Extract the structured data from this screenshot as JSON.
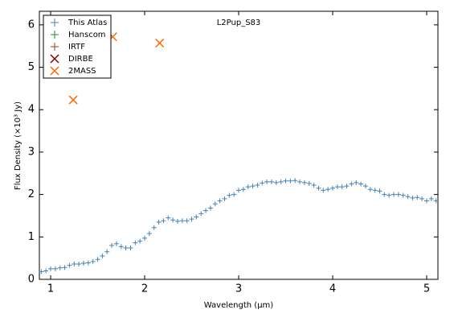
{
  "chart_data": {
    "type": "scatter",
    "title": "L2Pup_S83",
    "xlabel": "Wavelength (μm)",
    "ylabel": "Flux Density (×10³ Jy)",
    "xlim": [
      0.88,
      5.12
    ],
    "ylim": [
      0,
      6.32
    ],
    "xticks": [
      1,
      2,
      3,
      4,
      5
    ],
    "yticks": [
      0,
      1,
      2,
      3,
      4,
      5,
      6
    ],
    "legend": "upper left",
    "series": [
      {
        "name": "This Atlas",
        "color": "#4682b4",
        "marker": "+",
        "x": [
          0.9,
          0.95,
          1.0,
          1.05,
          1.1,
          1.15,
          1.2,
          1.25,
          1.3,
          1.35,
          1.4,
          1.45,
          1.5,
          1.55,
          1.6,
          1.65,
          1.7,
          1.75,
          1.8,
          1.85,
          1.9,
          1.95,
          2.0,
          2.05,
          2.1,
          2.15,
          2.2,
          2.25,
          2.3,
          2.35,
          2.4,
          2.45,
          2.5,
          2.55,
          2.6,
          2.65,
          2.7,
          2.75,
          2.8,
          2.85,
          2.9,
          2.95,
          3.0,
          3.05,
          3.1,
          3.15,
          3.2,
          3.25,
          3.3,
          3.35,
          3.4,
          3.45,
          3.5,
          3.55,
          3.6,
          3.65,
          3.7,
          3.75,
          3.8,
          3.85,
          3.9,
          3.95,
          4.0,
          4.05,
          4.1,
          4.15,
          4.2,
          4.25,
          4.3,
          4.35,
          4.4,
          4.45,
          4.5,
          4.55,
          4.6,
          4.65,
          4.7,
          4.75,
          4.8,
          4.85,
          4.9,
          4.95,
          5.0,
          5.05,
          5.1
        ],
        "values": [
          0.18,
          0.2,
          0.25,
          0.25,
          0.27,
          0.28,
          0.33,
          0.36,
          0.36,
          0.38,
          0.39,
          0.42,
          0.47,
          0.55,
          0.65,
          0.8,
          0.84,
          0.77,
          0.74,
          0.74,
          0.86,
          0.9,
          0.97,
          1.08,
          1.22,
          1.35,
          1.38,
          1.45,
          1.4,
          1.37,
          1.38,
          1.38,
          1.42,
          1.47,
          1.55,
          1.62,
          1.68,
          1.78,
          1.85,
          1.9,
          1.98,
          2.0,
          2.1,
          2.12,
          2.18,
          2.2,
          2.22,
          2.27,
          2.3,
          2.3,
          2.28,
          2.3,
          2.32,
          2.32,
          2.33,
          2.3,
          2.28,
          2.26,
          2.22,
          2.15,
          2.1,
          2.12,
          2.15,
          2.18,
          2.18,
          2.2,
          2.25,
          2.28,
          2.25,
          2.2,
          2.12,
          2.1,
          2.08,
          2.0,
          1.98,
          2.0,
          2.0,
          1.98,
          1.95,
          1.92,
          1.93,
          1.9,
          1.85,
          1.9,
          1.85
        ]
      },
      {
        "name": "Hanscom",
        "color": "#228b22",
        "marker": "+",
        "x": [],
        "values": []
      },
      {
        "name": "IRTF",
        "color": "#8b4513",
        "marker": "+",
        "x": [],
        "values": []
      },
      {
        "name": "DIRBE",
        "color": "#8b0000",
        "marker": "x",
        "x": [],
        "values": []
      },
      {
        "name": "2MASS",
        "color": "#ff6600",
        "marker": "x",
        "x": [
          1.24,
          1.66,
          2.16
        ],
        "values": [
          4.23,
          5.72,
          5.57
        ]
      }
    ]
  }
}
